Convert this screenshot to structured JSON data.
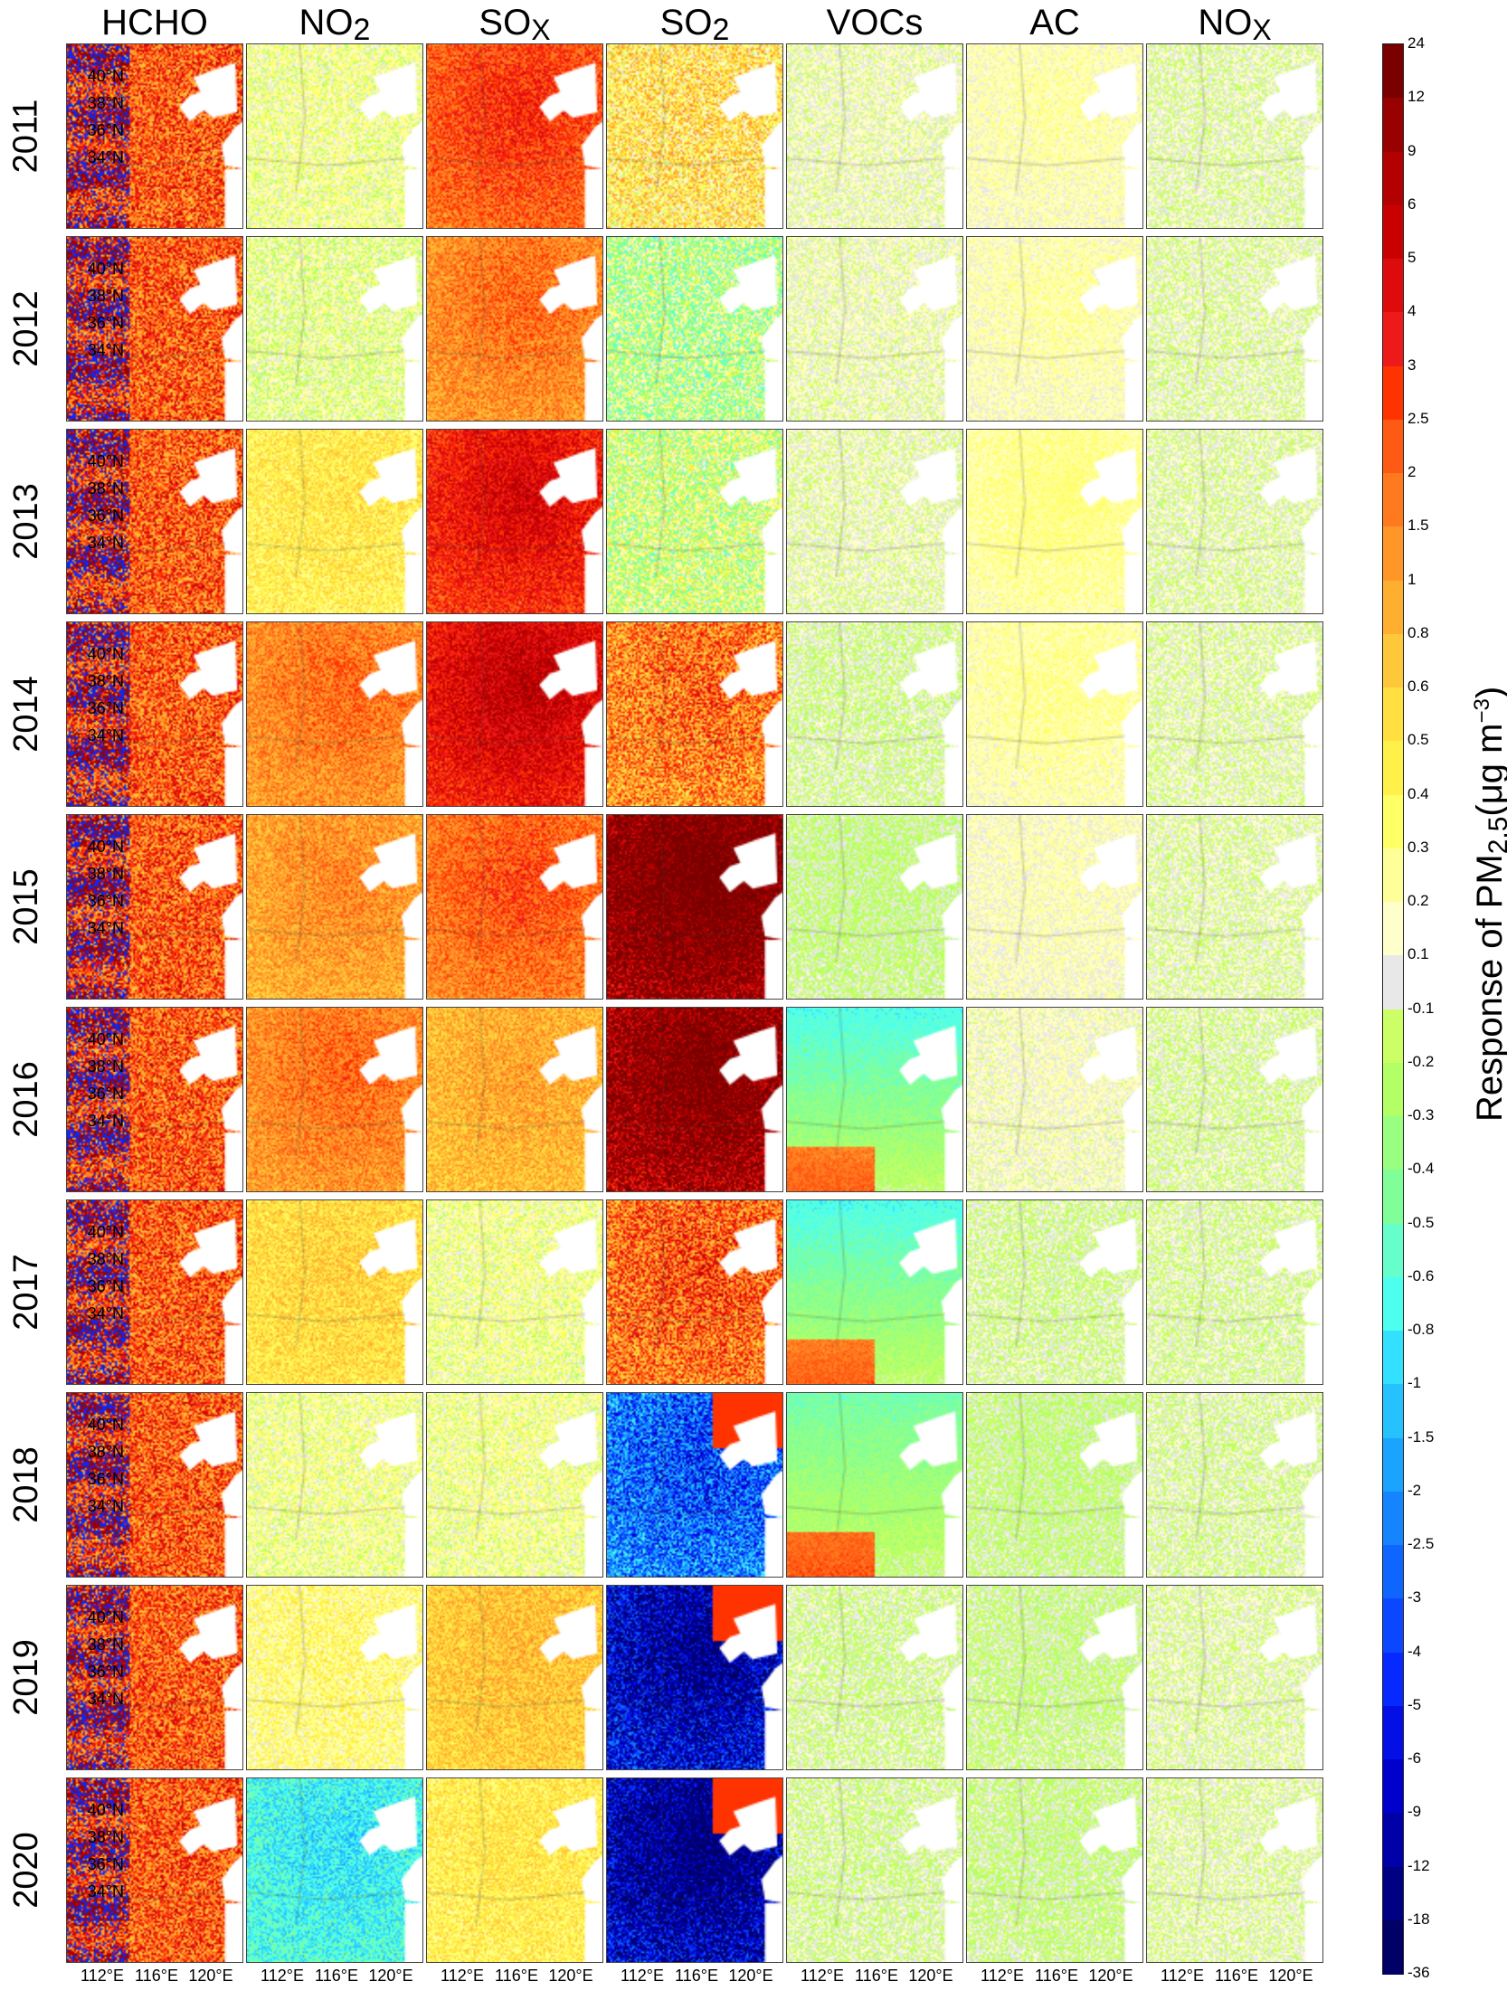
{
  "variables": [
    {
      "label": "HCHO",
      "sub": ""
    },
    {
      "label": "NO",
      "sub": "2"
    },
    {
      "label": "SO",
      "sub": "X"
    },
    {
      "label": "SO",
      "sub": "2"
    },
    {
      "label": "VOCs",
      "sub": ""
    },
    {
      "label": "AC",
      "sub": ""
    },
    {
      "label": "NO",
      "sub": "X"
    }
  ],
  "years": [
    "2011",
    "2012",
    "2013",
    "2014",
    "2015",
    "2016",
    "2017",
    "2018",
    "2019",
    "2020"
  ],
  "lat_ticks": [
    "40°N",
    "38°N",
    "36°N",
    "34°N"
  ],
  "lon_ticks": [
    "112°E",
    "116°E",
    "120°E"
  ],
  "colorbar": {
    "title_main": "Response of  PM",
    "title_sub": "2.5",
    "title_unit": "(μg m",
    "title_sup": "−3",
    "title_end": ")",
    "ticks": [
      "24",
      "12",
      "9",
      "6",
      "5",
      "4",
      "3",
      "2.5",
      "2",
      "1.5",
      "1",
      "0.8",
      "0.6",
      "0.5",
      "0.4",
      "0.3",
      "0.2",
      "0.1",
      "-0.1",
      "-0.2",
      "-0.3",
      "-0.4",
      "-0.5",
      "-0.6",
      "-0.8",
      "-1",
      "-1.5",
      "-2",
      "-2.5",
      "-3",
      "-4",
      "-5",
      "-6",
      "-9",
      "-12",
      "-18",
      "-36"
    ],
    "colors": [
      "#7a0000",
      "#990000",
      "#b30000",
      "#c80000",
      "#dd0b0b",
      "#ee1a1a",
      "#ff3300",
      "#ff5a14",
      "#ff7a1f",
      "#ff9628",
      "#ffaf30",
      "#ffc83a",
      "#ffe040",
      "#fff04a",
      "#ffff66",
      "#ffff99",
      "#ffffcc",
      "#e8e8e8",
      "#ccff66",
      "#b3ff66",
      "#99ff80",
      "#80ff99",
      "#66ffcc",
      "#4dffee",
      "#33e0ff",
      "#26c2ff",
      "#1aa3ff",
      "#1485ff",
      "#0f66ff",
      "#0a47ff",
      "#0629ff",
      "#040fe6",
      "#0000cc",
      "#0000a8",
      "#000085",
      "#000066"
    ]
  },
  "panel_intensity": [
    [
      0.55,
      0.05,
      0.55,
      0.2,
      0.02,
      0.08,
      0.0
    ],
    [
      0.55,
      0.02,
      0.45,
      -0.05,
      0.02,
      0.08,
      0.0
    ],
    [
      0.55,
      0.2,
      0.65,
      0.0,
      0.01,
      0.12,
      0.0
    ],
    [
      0.55,
      0.45,
      0.7,
      0.45,
      -0.02,
      0.1,
      0.0
    ],
    [
      0.55,
      0.4,
      0.5,
      0.95,
      -0.05,
      0.06,
      0.0
    ],
    [
      0.55,
      0.45,
      0.35,
      0.9,
      -0.25,
      0.04,
      -0.01
    ],
    [
      0.55,
      0.25,
      0.05,
      0.5,
      -0.25,
      -0.02,
      -0.01
    ],
    [
      0.55,
      0.05,
      0.05,
      -0.55,
      -0.18,
      -0.05,
      -0.01
    ],
    [
      0.55,
      0.12,
      0.3,
      -0.8,
      -0.02,
      -0.04,
      0.0
    ],
    [
      0.55,
      -0.3,
      0.2,
      -0.85,
      -0.02,
      -0.04,
      0.0
    ]
  ]
}
